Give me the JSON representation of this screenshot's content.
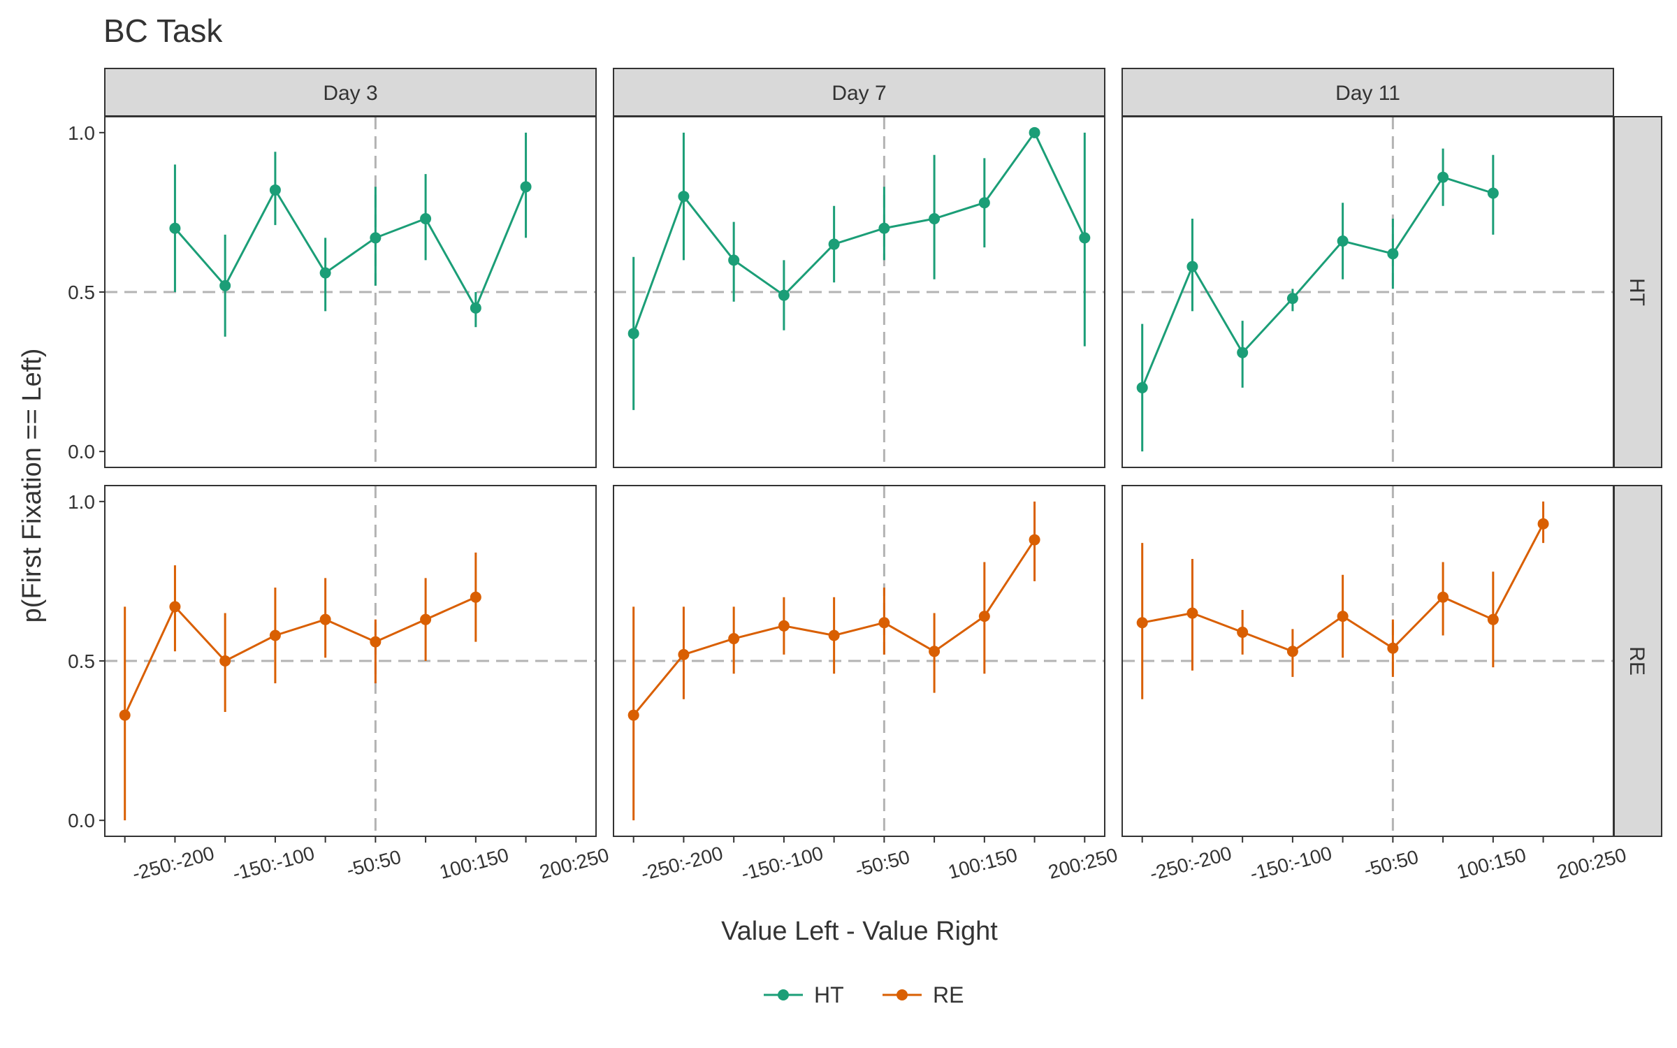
{
  "chart_data": {
    "type": "line",
    "title": "BC Task",
    "xlabel": "Value Left - Value Right",
    "ylabel": "p(First Fixation == Left)",
    "x_categories": [
      "-300:-250",
      "-250:-200",
      "-200:-150",
      "-150:-100",
      "-100:-50",
      "-50:50",
      "50:100",
      "100:150",
      "150:200",
      "200:250"
    ],
    "x_tick_labels": [
      "-250:-200",
      "-150:-100",
      "-50:50",
      "100:150",
      "200:250"
    ],
    "y_ticks": [
      "0.0",
      "0.5",
      "1.0"
    ],
    "ylim": [
      -0.05,
      1.05
    ],
    "reference_lines": {
      "y": 0.5,
      "x_category": "-50:50"
    },
    "columns": [
      "Day 3",
      "Day 7",
      "Day 11"
    ],
    "rows": [
      "HT",
      "RE"
    ],
    "colors": {
      "HT": "#1B9E77",
      "RE": "#D95F02"
    },
    "legend": {
      "position": "bottom",
      "entries": [
        "HT",
        "RE"
      ]
    },
    "grid": false,
    "panels": [
      {
        "column": "Day 3",
        "row": "HT",
        "points": [
          {
            "x": "-250:-200",
            "y": 0.7,
            "lo": 0.5,
            "hi": 0.9
          },
          {
            "x": "-200:-150",
            "y": 0.52,
            "lo": 0.36,
            "hi": 0.68
          },
          {
            "x": "-150:-100",
            "y": 0.82,
            "lo": 0.71,
            "hi": 0.94
          },
          {
            "x": "-100:-50",
            "y": 0.56,
            "lo": 0.44,
            "hi": 0.67
          },
          {
            "x": "-50:50",
            "y": 0.67,
            "lo": 0.52,
            "hi": 0.83
          },
          {
            "x": "50:100",
            "y": 0.73,
            "lo": 0.6,
            "hi": 0.87
          },
          {
            "x": "100:150",
            "y": 0.45,
            "lo": 0.39,
            "hi": 0.5
          },
          {
            "x": "150:200",
            "y": 0.83,
            "lo": 0.67,
            "hi": 1.0
          }
        ]
      },
      {
        "column": "Day 7",
        "row": "HT",
        "points": [
          {
            "x": "-300:-250",
            "y": 0.37,
            "lo": 0.13,
            "hi": 0.61
          },
          {
            "x": "-250:-200",
            "y": 0.8,
            "lo": 0.6,
            "hi": 1.0
          },
          {
            "x": "-200:-150",
            "y": 0.6,
            "lo": 0.47,
            "hi": 0.72
          },
          {
            "x": "-150:-100",
            "y": 0.49,
            "lo": 0.38,
            "hi": 0.6
          },
          {
            "x": "-100:-50",
            "y": 0.65,
            "lo": 0.53,
            "hi": 0.77
          },
          {
            "x": "-50:50",
            "y": 0.7,
            "lo": 0.6,
            "hi": 0.83
          },
          {
            "x": "50:100",
            "y": 0.73,
            "lo": 0.54,
            "hi": 0.93
          },
          {
            "x": "100:150",
            "y": 0.78,
            "lo": 0.64,
            "hi": 0.92
          },
          {
            "x": "150:200",
            "y": 1.0,
            "lo": 1.0,
            "hi": 1.0
          },
          {
            "x": "200:250",
            "y": 0.67,
            "lo": 0.33,
            "hi": 1.0
          }
        ]
      },
      {
        "column": "Day 11",
        "row": "HT",
        "points": [
          {
            "x": "-300:-250",
            "y": 0.2,
            "lo": 0.0,
            "hi": 0.4
          },
          {
            "x": "-250:-200",
            "y": 0.58,
            "lo": 0.44,
            "hi": 0.73
          },
          {
            "x": "-200:-150",
            "y": 0.31,
            "lo": 0.2,
            "hi": 0.41
          },
          {
            "x": "-150:-100",
            "y": 0.48,
            "lo": 0.44,
            "hi": 0.51
          },
          {
            "x": "-100:-50",
            "y": 0.66,
            "lo": 0.54,
            "hi": 0.78
          },
          {
            "x": "-50:50",
            "y": 0.62,
            "lo": 0.51,
            "hi": 0.73
          },
          {
            "x": "50:100",
            "y": 0.86,
            "lo": 0.77,
            "hi": 0.95
          },
          {
            "x": "100:150",
            "y": 0.81,
            "lo": 0.68,
            "hi": 0.93
          }
        ]
      },
      {
        "column": "Day 3",
        "row": "RE",
        "points": [
          {
            "x": "-300:-250",
            "y": 0.33,
            "lo": 0.0,
            "hi": 0.67
          },
          {
            "x": "-250:-200",
            "y": 0.67,
            "lo": 0.53,
            "hi": 0.8
          },
          {
            "x": "-200:-150",
            "y": 0.5,
            "lo": 0.34,
            "hi": 0.65
          },
          {
            "x": "-150:-100",
            "y": 0.58,
            "lo": 0.43,
            "hi": 0.73
          },
          {
            "x": "-100:-50",
            "y": 0.63,
            "lo": 0.51,
            "hi": 0.76
          },
          {
            "x": "-50:50",
            "y": 0.56,
            "lo": 0.43,
            "hi": 0.63
          },
          {
            "x": "50:100",
            "y": 0.63,
            "lo": 0.5,
            "hi": 0.76
          },
          {
            "x": "100:150",
            "y": 0.7,
            "lo": 0.56,
            "hi": 0.84
          }
        ]
      },
      {
        "column": "Day 7",
        "row": "RE",
        "points": [
          {
            "x": "-300:-250",
            "y": 0.33,
            "lo": 0.0,
            "hi": 0.67
          },
          {
            "x": "-250:-200",
            "y": 0.52,
            "lo": 0.38,
            "hi": 0.67
          },
          {
            "x": "-200:-150",
            "y": 0.57,
            "lo": 0.46,
            "hi": 0.67
          },
          {
            "x": "-150:-100",
            "y": 0.61,
            "lo": 0.52,
            "hi": 0.7
          },
          {
            "x": "-100:-50",
            "y": 0.58,
            "lo": 0.46,
            "hi": 0.7
          },
          {
            "x": "-50:50",
            "y": 0.62,
            "lo": 0.52,
            "hi": 0.73
          },
          {
            "x": "50:100",
            "y": 0.53,
            "lo": 0.4,
            "hi": 0.65
          },
          {
            "x": "100:150",
            "y": 0.64,
            "lo": 0.46,
            "hi": 0.81
          },
          {
            "x": "150:200",
            "y": 0.88,
            "lo": 0.75,
            "hi": 1.0
          }
        ]
      },
      {
        "column": "Day 11",
        "row": "RE",
        "points": [
          {
            "x": "-300:-250",
            "y": 0.62,
            "lo": 0.38,
            "hi": 0.87
          },
          {
            "x": "-250:-200",
            "y": 0.65,
            "lo": 0.47,
            "hi": 0.82
          },
          {
            "x": "-200:-150",
            "y": 0.59,
            "lo": 0.52,
            "hi": 0.66
          },
          {
            "x": "-150:-100",
            "y": 0.53,
            "lo": 0.45,
            "hi": 0.6
          },
          {
            "x": "-100:-50",
            "y": 0.64,
            "lo": 0.51,
            "hi": 0.77
          },
          {
            "x": "-50:50",
            "y": 0.54,
            "lo": 0.45,
            "hi": 0.63
          },
          {
            "x": "50:100",
            "y": 0.7,
            "lo": 0.58,
            "hi": 0.81
          },
          {
            "x": "100:150",
            "y": 0.63,
            "lo": 0.48,
            "hi": 0.78
          },
          {
            "x": "150:200",
            "y": 0.93,
            "lo": 0.87,
            "hi": 1.0
          }
        ]
      }
    ]
  }
}
